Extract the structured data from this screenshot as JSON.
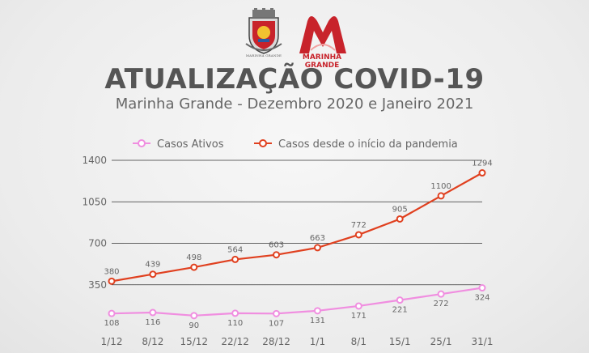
{
  "header": {
    "crest_caption": "MARINHA GRANDE",
    "brand_name": "MARINHA GRANDE",
    "title": "ATUALIZAÇÃO COVID-19",
    "subtitle": "Marinha Grande - Dezembro 2020 e Janeiro 2021"
  },
  "colors": {
    "casos_ativos": "#f08ee0",
    "casos_total": "#e0401f",
    "brand_red": "#c8232b"
  },
  "icons": [
    "municipal-crest-icon",
    "marinha-grande-logo-icon"
  ],
  "chart_data": {
    "type": "line",
    "title": "",
    "xlabel": "",
    "ylabel": "",
    "categories": [
      "1/12",
      "8/12",
      "15/12",
      "22/12",
      "28/12",
      "1/1",
      "8/1",
      "15/1",
      "25/1",
      "31/1"
    ],
    "ylim": [
      0,
      1400
    ],
    "yticks": [
      350,
      700,
      1050,
      1400
    ],
    "grid": true,
    "legend_position": "top-center",
    "series": [
      {
        "name": "Casos Ativos",
        "values": [
          108,
          116,
          90,
          110,
          107,
          131,
          171,
          221,
          272,
          324
        ]
      },
      {
        "name": "Casos desde o início da pandemia",
        "values": [
          380,
          439,
          498,
          564,
          603,
          663,
          772,
          905,
          1100,
          1294
        ]
      }
    ]
  }
}
